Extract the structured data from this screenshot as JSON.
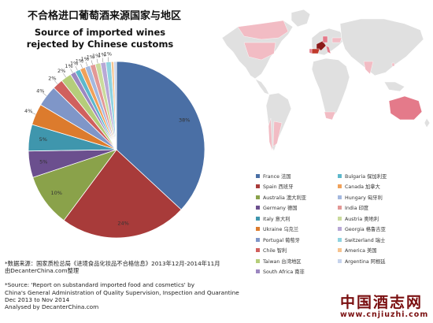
{
  "chart_data": {
    "type": "pie",
    "title": "不合格进口葡萄酒来源国家与地区",
    "subtitle": "Source of imported wines rejected by Chinese customs",
    "slices": [
      {
        "label": "France 法国",
        "value": 38,
        "color": "#4a6fa5",
        "value_label": "38%"
      },
      {
        "label": "Spain 西班牙",
        "value": 24,
        "color": "#a83b3a",
        "value_label": "24%"
      },
      {
        "label": "Australia 澳大利亚",
        "value": 10,
        "color": "#8aa24a",
        "value_label": "10%"
      },
      {
        "label": "Germany 德国",
        "value": 5,
        "color": "#6b4f8e",
        "value_label": "5%"
      },
      {
        "label": "Italy 意大利",
        "value": 5,
        "color": "#3f96ad",
        "value_label": "5%"
      },
      {
        "label": "Ukraine 乌克兰",
        "value": 4,
        "color": "#dc7b2d",
        "value_label": "4%"
      },
      {
        "label": "Portugal 葡萄牙",
        "value": 4,
        "color": "#7f96c8",
        "value_label": "4%"
      },
      {
        "label": "Chile 智利",
        "value": 2,
        "color": "#d0605e",
        "value_label": "2%"
      },
      {
        "label": "Taiwan 台湾地区",
        "value": 2,
        "color": "#b5cd7a",
        "value_label": "2%"
      },
      {
        "label": "South Africa 南非",
        "value": 1,
        "color": "#9c87c0",
        "value_label": "1%"
      },
      {
        "label": "Bulgaria 保加利亚",
        "value": 1,
        "color": "#5db8cc",
        "value_label": "1%"
      },
      {
        "label": "Canada 加拿大",
        "value": 1,
        "color": "#f0a15a",
        "value_label": "1%"
      },
      {
        "label": "Hungary 匈牙利",
        "value": 1,
        "color": "#a4b8df",
        "value_label": "1%"
      },
      {
        "label": "India 印度",
        "value": 1,
        "color": "#e39896",
        "value_label": "1%"
      },
      {
        "label": "Austria 奥地利",
        "value": 1,
        "color": "#cadb9c",
        "value_label": "1%"
      },
      {
        "label": "Georgia 格鲁吉亚",
        "value": 1,
        "color": "#b8a8d6",
        "value_label": "1%"
      },
      {
        "label": "Switzerland 瑞士",
        "value": 1,
        "color": "#8fd3e0",
        "value_label": "1%"
      },
      {
        "label": "America 美国",
        "value": 0.5,
        "color": "#f6c38f",
        "value_label": ""
      },
      {
        "label": "Argentina 阿根廷",
        "value": 0.5,
        "color": "#c6d3ec",
        "value_label": ""
      }
    ],
    "legend_order": [
      "France 法国",
      "Bulgaria 保加利亚",
      "Spain 西班牙",
      "Canada 加拿大",
      "Australia 澳大利亚",
      "Hungary 匈牙利",
      "Germany 德国",
      "India 印度",
      "Italy 意大利",
      "Austria 奥地利",
      "Ukraine 乌克兰",
      "Georgia 格鲁吉亚",
      "Portugal 葡萄牙",
      "Switzerland 瑞士",
      "Chile 智利",
      "America 美国",
      "Taiwan 台湾地区",
      "Argentina 阿根廷",
      "South Africa 南非"
    ],
    "legend_placement": "bottom-right"
  },
  "map_colors": {
    "land": "#e0e0e0",
    "rejected_light": "#f2bcc4",
    "rejected_medium": "#e47a8a",
    "rejected_dark": "#c0392b",
    "rejected_darkest": "#8b1a1a"
  },
  "source": {
    "zh_line1": "*数据来源：国家质检总局《进境食品化妆品不合格信息》2013年12月-2014年11月",
    "zh_line2": "由DecanterChina.com整理",
    "en_line1": "*Source: 'Report on substandard imported food and cosmetics' by",
    "en_line2": "China's General Administration of Quality Supervision, Inspection and Quarantine",
    "en_line3": "Dec 2013 to Nov 2014",
    "en_line4": "Analysed by DecanterChina.com"
  },
  "watermark": {
    "name": "中国酒志网",
    "url": "www.cnjiuzhi.com"
  }
}
